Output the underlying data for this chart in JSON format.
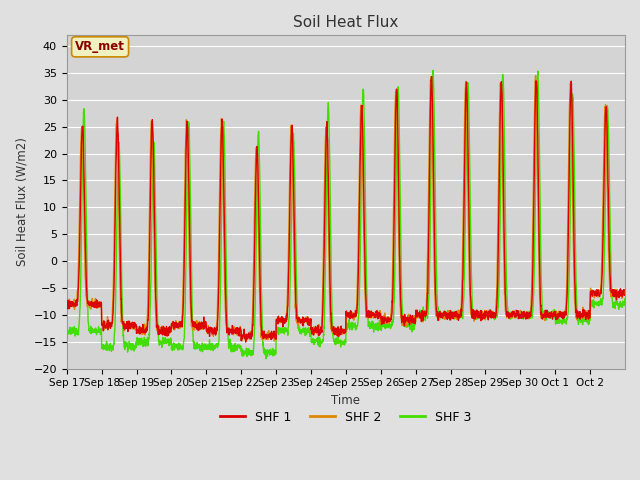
{
  "title": "Soil Heat Flux",
  "ylabel": "Soil Heat Flux (W/m2)",
  "xlabel": "Time",
  "ylim": [
    -20,
    42
  ],
  "yticks": [
    -20,
    -15,
    -10,
    -5,
    0,
    5,
    10,
    15,
    20,
    25,
    30,
    35,
    40
  ],
  "background_color": "#e0e0e0",
  "plot_bg_color": "#d4d4d4",
  "grid_color": "white",
  "title_color": "#333333",
  "legend_labels": [
    "SHF 1",
    "SHF 2",
    "SHF 3"
  ],
  "legend_colors": [
    "#dd0000",
    "#dd8800",
    "#44dd00"
  ],
  "annotation_text": "VR_met",
  "annotation_color": "#8b0000",
  "annotation_bg": "#f0f0c0",
  "annotation_border": "#cc8800",
  "x_tick_labels": [
    "Sep 17",
    "Sep 18",
    "Sep 19",
    "Sep 20",
    "Sep 21",
    "Sep 22",
    "Sep 23",
    "Sep 24",
    "Sep 25",
    "Sep 26",
    "Sep 27",
    "Sep 28",
    "Sep 29",
    "Sep 30",
    "Oct 1",
    "Oct 2"
  ],
  "line_width": 1.0,
  "days": 16,
  "points_per_day": 144,
  "shf1_peaks": [
    25,
    26,
    26,
    26,
    26,
    21,
    25,
    25,
    29,
    32,
    34,
    33,
    33,
    34,
    33,
    29
  ],
  "shf1_troughs": [
    -8,
    -12,
    -13,
    -12,
    -13,
    -14,
    -11,
    -13,
    -10,
    -11,
    -10,
    -10,
    -10,
    -10,
    -10,
    -6
  ],
  "shf2_peaks": [
    25,
    26,
    26,
    26,
    26,
    21,
    25,
    25,
    29,
    32,
    34,
    33,
    33,
    34,
    33,
    29
  ],
  "shf2_troughs": [
    -8,
    -12,
    -13,
    -12,
    -13,
    -14,
    -11,
    -13,
    -10,
    -11,
    -10,
    -10,
    -10,
    -10,
    -10,
    -6
  ],
  "shf3_peaks": [
    28,
    22,
    22,
    26,
    26,
    24,
    23,
    29,
    32,
    32,
    35,
    33,
    35,
    35,
    31,
    29
  ],
  "shf3_troughs": [
    -13,
    -16,
    -15,
    -16,
    -16,
    -17,
    -13,
    -15,
    -12,
    -12,
    -10,
    -10,
    -10,
    -10,
    -11,
    -8
  ]
}
